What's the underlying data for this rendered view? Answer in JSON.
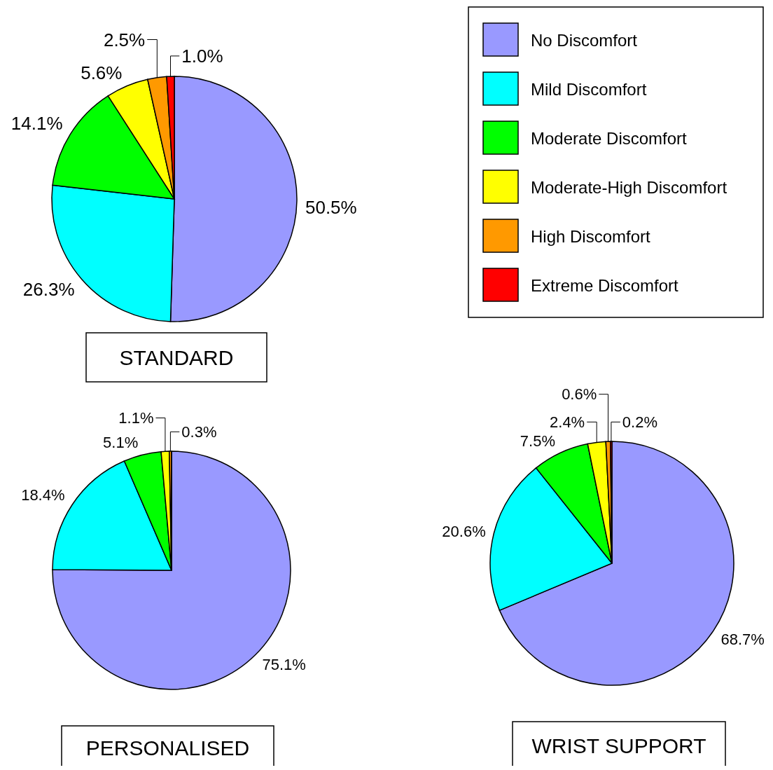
{
  "chart_data": [
    {
      "type": "pie",
      "title": "STANDARD",
      "categories": [
        "No Discomfort",
        "Mild Discomfort",
        "Moderate Discomfort",
        "Moderate-High Discomfort",
        "High Discomfort",
        "Extreme Discomfort"
      ],
      "values": [
        50.5,
        26.3,
        14.1,
        5.6,
        2.5,
        1.0
      ],
      "value_labels": [
        "50.5%",
        "26.3%",
        "14.1%",
        "5.6%",
        "2.5%",
        "1.0%"
      ],
      "colors": [
        "#9999ff",
        "#00ffff",
        "#00ff00",
        "#ffff00",
        "#ff9900",
        "#ff0000"
      ],
      "legend": "right"
    },
    {
      "type": "pie",
      "title": "PERSONALISED",
      "categories": [
        null,
        null,
        null,
        null,
        null,
        null
      ],
      "values": [
        75.1,
        18.4,
        5.1,
        1.1,
        0.3,
        0
      ],
      "value_labels": [
        "75.1%",
        "18.4%",
        "5.1%",
        "1.1%",
        "0.3%",
        null
      ],
      "colors": [
        "#9999ff",
        "#00ffff",
        "#00ff00",
        "#ffff00",
        "#ff9900",
        "#ff0000"
      ]
    },
    {
      "type": "pie",
      "title": "WRIST SUPPORT",
      "categories": [
        null,
        null,
        null,
        null,
        null,
        null
      ],
      "values": [
        68.7,
        20.6,
        7.5,
        2.4,
        0.6,
        0.2
      ],
      "value_labels": [
        "68.7%",
        "20.6%",
        "7.5%",
        "2.4%",
        "0.6%",
        "0.2%"
      ],
      "colors": [
        "#9999ff",
        "#00ffff",
        "#00ff00",
        "#ffff00",
        "#ff9900",
        "#ff0000"
      ]
    }
  ]
}
